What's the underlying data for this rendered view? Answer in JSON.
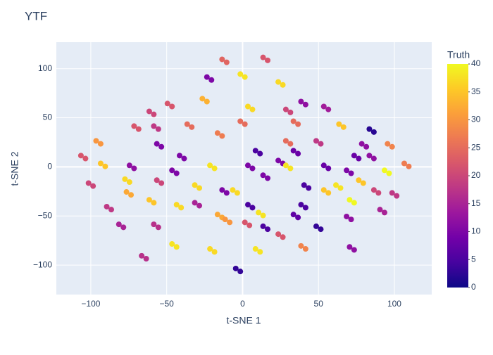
{
  "chart_data": {
    "type": "scatter",
    "title": "YTF",
    "x_label": "t-SNE 1",
    "y_label": "t-SNE 2",
    "colorbar_title": "Truth",
    "xlim": [
      -122.7,
      124.6
    ],
    "ylim": [
      -130,
      127
    ],
    "xticks": [
      {
        "value": -100,
        "label": "−100"
      },
      {
        "value": -50,
        "label": "−50"
      },
      0,
      50,
      100
    ],
    "yticks": [
      {
        "value": -100,
        "label": "−100"
      },
      {
        "value": -50,
        "label": "−50"
      },
      0,
      50,
      100
    ],
    "clim": [
      0,
      40
    ],
    "cticks": [
      0,
      5,
      10,
      15,
      20,
      25,
      30,
      35,
      40
    ],
    "colorscale": [
      "#0d0887",
      "#46039f",
      "#7201a8",
      "#9c179e",
      "#bd3786",
      "#d8576b",
      "#ed7953",
      "#fb9f3a",
      "#fdca26",
      "#f0f921"
    ],
    "grid": true,
    "x": [
      -106.5,
      -103.5,
      -96.5,
      -93.5,
      -93.5,
      -90.5,
      -101.5,
      -98.5,
      -89.5,
      -86.5,
      -81.5,
      -78.5,
      -76.5,
      -73.5,
      -77.5,
      -74.5,
      -74.5,
      -71.5,
      -61.5,
      -58.5,
      -58.5,
      -55.5,
      -56.5,
      -53.5,
      -71.5,
      -68.5,
      -49.5,
      -46.5,
      -61.5,
      -58.5,
      -56.5,
      -53.5,
      -58.5,
      -55.5,
      -46.5,
      -43.5,
      -43.5,
      -40.5,
      -36.5,
      -33.5,
      -41.5,
      -38.5,
      -46.5,
      -43.5,
      -31.5,
      -28.5,
      -31.5,
      -28.5,
      -26.5,
      -23.5,
      -16.5,
      -13.5,
      -21.5,
      -18.5,
      -16.5,
      -13.5,
      -21.5,
      -18.5,
      -23.5,
      -20.5,
      -13.5,
      -10.5,
      -1.5,
      1.5,
      3.5,
      6.5,
      -1.5,
      1.5,
      -11.5,
      -8.5,
      -4.5,
      -1.5,
      -6.5,
      -3.5,
      8.5,
      11.5,
      13.5,
      16.5,
      23.5,
      26.5,
      3.5,
      6.5,
      3.5,
      6.5,
      1.5,
      4.5,
      8.5,
      11.5,
      13.5,
      16.5,
      -13.5,
      -10.5,
      23.5,
      26.5,
      33.5,
      36.5,
      28.5,
      31.5,
      28.5,
      31.5,
      33.5,
      36.5,
      10.5,
      13.5,
      13.5,
      16.5,
      33.5,
      36.5,
      23.5,
      26.5,
      38.5,
      41.5,
      28.5,
      31.5,
      38.5,
      41.5,
      53.5,
      56.5,
      38.5,
      41.5,
      40.5,
      43.5,
      48.5,
      51.5,
      53.5,
      56.5,
      48.5,
      51.5,
      53.5,
      56.5,
      61.5,
      64.5,
      63.5,
      66.5,
      68.5,
      71.5,
      70.5,
      73.5,
      73.5,
      76.5,
      78.5,
      81.5,
      83.5,
      86.5,
      76.5,
      79.5,
      83.5,
      86.5,
      95.5,
      98.5,
      86.5,
      89.5,
      93.5,
      96.5,
      98.5,
      101.5,
      90.5,
      93.5,
      106.5,
      109.5,
      68.5,
      71.5,
      -66.5,
      -63.5,
      70.5,
      73.5
    ],
    "y": [
      11.5,
      8.5,
      26.5,
      23.5,
      3.5,
      0.5,
      -16.5,
      -19.5,
      -40.5,
      -43.5,
      -58.5,
      -61.5,
      -25.5,
      -28.5,
      -12.5,
      -15.5,
      1.5,
      -1.5,
      56.5,
      53.5,
      41.5,
      38.5,
      23.5,
      20.5,
      41.5,
      38.5,
      64.5,
      61.5,
      -33.5,
      -36.5,
      -13.5,
      -16.5,
      -58.5,
      -61.5,
      -78.5,
      -81.5,
      -38.5,
      -41.5,
      43.5,
      40.5,
      11.5,
      8.5,
      -3.5,
      -6.5,
      -18.5,
      -21.5,
      -36.5,
      -39.5,
      69.5,
      66.5,
      34.5,
      31.5,
      1.5,
      -1.5,
      -48.5,
      -51.5,
      -83.5,
      -86.5,
      91.5,
      88.5,
      -23.5,
      -26.5,
      46.5,
      43.5,
      61.5,
      58.5,
      94.5,
      91.5,
      -53.5,
      -56.5,
      -103.5,
      -106.5,
      -23.5,
      -26.5,
      16.5,
      13.5,
      -8.5,
      -11.5,
      6.5,
      3.5,
      1.5,
      -1.5,
      -38.5,
      -41.5,
      -56.5,
      -59.5,
      -83.5,
      -86.5,
      111.5,
      108.5,
      109.5,
      106.5,
      86.5,
      83.5,
      46.5,
      43.5,
      26.5,
      23.5,
      58.5,
      55.5,
      16.5,
      13.5,
      -46.5,
      -49.5,
      -60.5,
      -63.5,
      -48.5,
      -51.5,
      -68.5,
      -71.5,
      -80.5,
      -83.5,
      1.5,
      -1.5,
      66.5,
      63.5,
      61.5,
      58.5,
      -38.5,
      -41.5,
      -18.5,
      -21.5,
      -60.5,
      -63.5,
      -23.5,
      -26.5,
      26.5,
      23.5,
      1.5,
      -1.5,
      -18.5,
      -21.5,
      43.5,
      40.5,
      -50.5,
      -53.5,
      -33.5,
      -36.5,
      11.5,
      8.5,
      23.5,
      20.5,
      38.5,
      35.5,
      -13.5,
      -16.5,
      11.5,
      8.5,
      23.5,
      20.5,
      -23.5,
      -26.5,
      -3.5,
      -6.5,
      -26.5,
      -29.5,
      -43.5,
      -46.5,
      3.5,
      0.5,
      -3.5,
      -6.5,
      -90.5,
      -93.5,
      -81.5,
      -84.5
    ],
    "color_values": [
      22,
      22,
      30,
      30,
      35,
      35,
      20,
      20,
      18,
      18,
      15,
      15,
      32,
      32,
      37,
      37,
      12,
      12,
      20,
      20,
      18,
      18,
      10,
      10,
      22,
      22,
      22,
      22,
      35,
      35,
      20,
      20,
      17,
      17,
      38,
      38,
      37,
      37,
      25,
      25,
      10,
      10,
      10,
      10,
      37,
      37,
      15,
      15,
      33,
      33,
      27,
      27,
      38,
      38,
      32,
      32,
      37,
      37,
      10,
      10,
      10,
      10,
      25,
      25,
      37,
      37,
      38,
      38,
      30,
      30,
      3,
      3,
      37,
      37,
      5,
      5,
      10,
      10,
      10,
      10,
      10,
      10,
      5,
      5,
      22,
      22,
      38,
      38,
      22,
      22,
      24,
      24,
      37,
      37,
      25,
      25,
      25,
      25,
      20,
      20,
      8,
      8,
      38,
      38,
      5,
      5,
      7,
      7,
      22,
      22,
      28,
      28,
      38,
      38,
      12,
      12,
      14,
      14,
      5,
      5,
      5,
      5,
      3,
      3,
      35,
      35,
      18,
      18,
      8,
      8,
      38,
      38,
      35,
      35,
      12,
      12,
      40,
      40,
      8,
      8,
      12,
      12,
      2,
      2,
      35,
      35,
      12,
      12,
      28,
      28,
      20,
      20,
      40,
      40,
      18,
      18,
      15,
      15,
      27,
      27,
      10,
      10,
      17,
      17,
      12,
      12
    ]
  }
}
